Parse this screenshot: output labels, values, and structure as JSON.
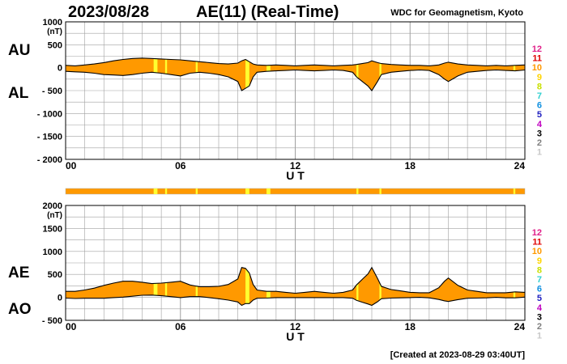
{
  "header": {
    "date": "2023/08/28",
    "title": "AE(11) (Real-Time)",
    "source": "WDC for Geomagnetism, Kyoto"
  },
  "footer": {
    "created": "[Created at 2023-08-29 03:40UT]"
  },
  "labels": {
    "top_upper": "AU",
    "top_lower": "AL",
    "bottom_upper": "AE",
    "bottom_lower": "AO",
    "unit": "(nT)"
  },
  "color_key": [
    {
      "label": "12",
      "color": "#e0208a"
    },
    {
      "label": "11",
      "color": "#e00000"
    },
    {
      "label": "10",
      "color": "#ff9900"
    },
    {
      "label": "9",
      "color": "#ffd400"
    },
    {
      "label": "8",
      "color": "#c8e000"
    },
    {
      "label": "7",
      "color": "#30d0d0"
    },
    {
      "label": "6",
      "color": "#1090e0"
    },
    {
      "label": "5",
      "color": "#2020c0"
    },
    {
      "label": "4",
      "color": "#c000c0"
    },
    {
      "label": "3",
      "color": "#000000"
    },
    {
      "label": "2",
      "color": "#808080"
    },
    {
      "label": "1",
      "color": "#c8c8c8"
    }
  ],
  "colors": {
    "fill_main": "#ff9900",
    "fill_highlight": "#ffff30",
    "line": "#000000",
    "grid": "#a0a0a0"
  },
  "chart_data": [
    {
      "type": "area",
      "xlabel": "U T",
      "ylabel": "(nT)",
      "xlim": [
        0,
        24
      ],
      "ylim": [
        -2000,
        1000
      ],
      "x_ticks": [
        "00",
        "06",
        "12",
        "18",
        "24"
      ],
      "y_ticks": [
        "1000",
        "500",
        "0",
        "- 500",
        "- 1000",
        "- 1500",
        "- 2000"
      ],
      "grid": true,
      "highlight_bands_hours": [
        [
          4.6,
          4.8
        ],
        [
          5.2,
          5.3
        ],
        [
          6.8,
          6.9
        ],
        [
          9.4,
          9.6
        ],
        [
          10.5,
          10.7
        ],
        [
          15.2,
          15.3
        ],
        [
          16.4,
          16.5
        ],
        [
          23.4,
          23.5
        ]
      ],
      "series": [
        {
          "name": "AU",
          "x": [
            0,
            0.5,
            1,
            1.5,
            2,
            2.5,
            3,
            3.5,
            4,
            4.5,
            5,
            5.5,
            6,
            6.5,
            7,
            7.5,
            8,
            8.5,
            9,
            9.2,
            9.4,
            9.6,
            9.8,
            10,
            10.5,
            11,
            11.5,
            12,
            12.5,
            13,
            13.5,
            14,
            14.5,
            15,
            15.2,
            15.5,
            15.8,
            16,
            16.3,
            16.5,
            17,
            17.5,
            18,
            18.5,
            19,
            19.5,
            19.8,
            20,
            20.5,
            21,
            21.5,
            22,
            22.5,
            23,
            23.5,
            24
          ],
          "values": [
            50,
            40,
            60,
            80,
            110,
            150,
            180,
            200,
            210,
            200,
            190,
            180,
            170,
            150,
            130,
            110,
            90,
            80,
            100,
            150,
            180,
            130,
            80,
            60,
            50,
            60,
            50,
            40,
            50,
            60,
            50,
            40,
            50,
            60,
            70,
            90,
            110,
            150,
            110,
            90,
            70,
            60,
            50,
            50,
            40,
            60,
            100,
            120,
            80,
            60,
            50,
            40,
            50,
            40,
            50,
            60
          ]
        },
        {
          "name": "AL",
          "x": [
            0,
            0.5,
            1,
            1.5,
            2,
            2.5,
            3,
            3.5,
            4,
            4.5,
            5,
            5.5,
            6,
            6.5,
            7,
            7.5,
            8,
            8.5,
            9,
            9.2,
            9.4,
            9.6,
            9.8,
            10,
            10.5,
            11,
            11.5,
            12,
            12.5,
            13,
            13.5,
            14,
            14.5,
            15,
            15.2,
            15.5,
            15.8,
            16,
            16.3,
            16.5,
            17,
            17.5,
            18,
            18.5,
            19,
            19.5,
            19.8,
            20,
            20.5,
            21,
            21.5,
            22,
            22.5,
            23,
            23.5,
            24
          ],
          "values": [
            -80,
            -90,
            -100,
            -120,
            -150,
            -160,
            -170,
            -150,
            -120,
            -100,
            -120,
            -150,
            -180,
            -120,
            -100,
            -120,
            -150,
            -200,
            -300,
            -500,
            -450,
            -400,
            -200,
            -100,
            -80,
            -70,
            -60,
            -50,
            -60,
            -70,
            -60,
            -50,
            -60,
            -100,
            -200,
            -300,
            -400,
            -500,
            -300,
            -150,
            -100,
            -80,
            -60,
            -50,
            -60,
            -150,
            -250,
            -300,
            -180,
            -100,
            -80,
            -60,
            -50,
            -60,
            -70,
            -50
          ]
        }
      ]
    },
    {
      "type": "area",
      "xlabel": "U T",
      "ylabel": "(nT)",
      "xlim": [
        0,
        24
      ],
      "ylim": [
        -500,
        2000
      ],
      "x_ticks": [
        "00",
        "06",
        "12",
        "18",
        "24"
      ],
      "y_ticks": [
        "2000",
        "1500",
        "1000",
        "500",
        "0",
        "- 500"
      ],
      "grid": true,
      "highlight_bands_hours": [
        [
          4.6,
          4.8
        ],
        [
          5.2,
          5.3
        ],
        [
          6.8,
          6.9
        ],
        [
          9.4,
          9.6
        ],
        [
          10.5,
          10.7
        ],
        [
          15.2,
          15.3
        ],
        [
          16.4,
          16.5
        ],
        [
          23.4,
          23.5
        ]
      ],
      "series": [
        {
          "name": "AE",
          "x": [
            0,
            0.5,
            1,
            1.5,
            2,
            2.5,
            3,
            3.5,
            4,
            4.5,
            5,
            5.5,
            6,
            6.5,
            7,
            7.5,
            8,
            8.5,
            9,
            9.2,
            9.4,
            9.6,
            9.8,
            10,
            10.5,
            11,
            11.5,
            12,
            12.5,
            13,
            13.5,
            14,
            14.5,
            15,
            15.2,
            15.5,
            15.8,
            16,
            16.3,
            16.5,
            17,
            17.5,
            18,
            18.5,
            19,
            19.5,
            19.8,
            20,
            20.5,
            21,
            21.5,
            22,
            22.5,
            23,
            23.5,
            24
          ],
          "values": [
            130,
            130,
            160,
            200,
            260,
            310,
            350,
            350,
            330,
            300,
            310,
            330,
            350,
            270,
            230,
            230,
            240,
            280,
            400,
            650,
            630,
            530,
            280,
            160,
            130,
            130,
            110,
            90,
            110,
            130,
            110,
            90,
            110,
            160,
            270,
            390,
            510,
            650,
            410,
            240,
            170,
            140,
            110,
            100,
            100,
            210,
            350,
            420,
            260,
            160,
            130,
            100,
            100,
            100,
            120,
            110
          ]
        },
        {
          "name": "AO",
          "x": [
            0,
            0.5,
            1,
            1.5,
            2,
            2.5,
            3,
            3.5,
            4,
            4.5,
            5,
            5.5,
            6,
            6.5,
            7,
            7.5,
            8,
            8.5,
            9,
            9.2,
            9.4,
            9.6,
            9.8,
            10,
            10.5,
            11,
            11.5,
            12,
            12.5,
            13,
            13.5,
            14,
            14.5,
            15,
            15.2,
            15.5,
            15.8,
            16,
            16.3,
            16.5,
            17,
            17.5,
            18,
            18.5,
            19,
            19.5,
            19.8,
            20,
            20.5,
            21,
            21.5,
            22,
            22.5,
            23,
            23.5,
            24
          ],
          "values": [
            -15,
            -25,
            -20,
            -20,
            -20,
            -5,
            5,
            25,
            45,
            50,
            35,
            15,
            -5,
            15,
            15,
            -5,
            -30,
            -60,
            -100,
            -175,
            -135,
            -135,
            -60,
            -20,
            -15,
            -5,
            -5,
            -5,
            -5,
            -5,
            -5,
            -5,
            -5,
            -20,
            -65,
            -105,
            -145,
            -175,
            -95,
            -30,
            -15,
            -10,
            -5,
            0,
            -10,
            -45,
            -75,
            -90,
            -50,
            -20,
            -15,
            -10,
            0,
            -10,
            -10,
            5
          ]
        }
      ]
    }
  ]
}
